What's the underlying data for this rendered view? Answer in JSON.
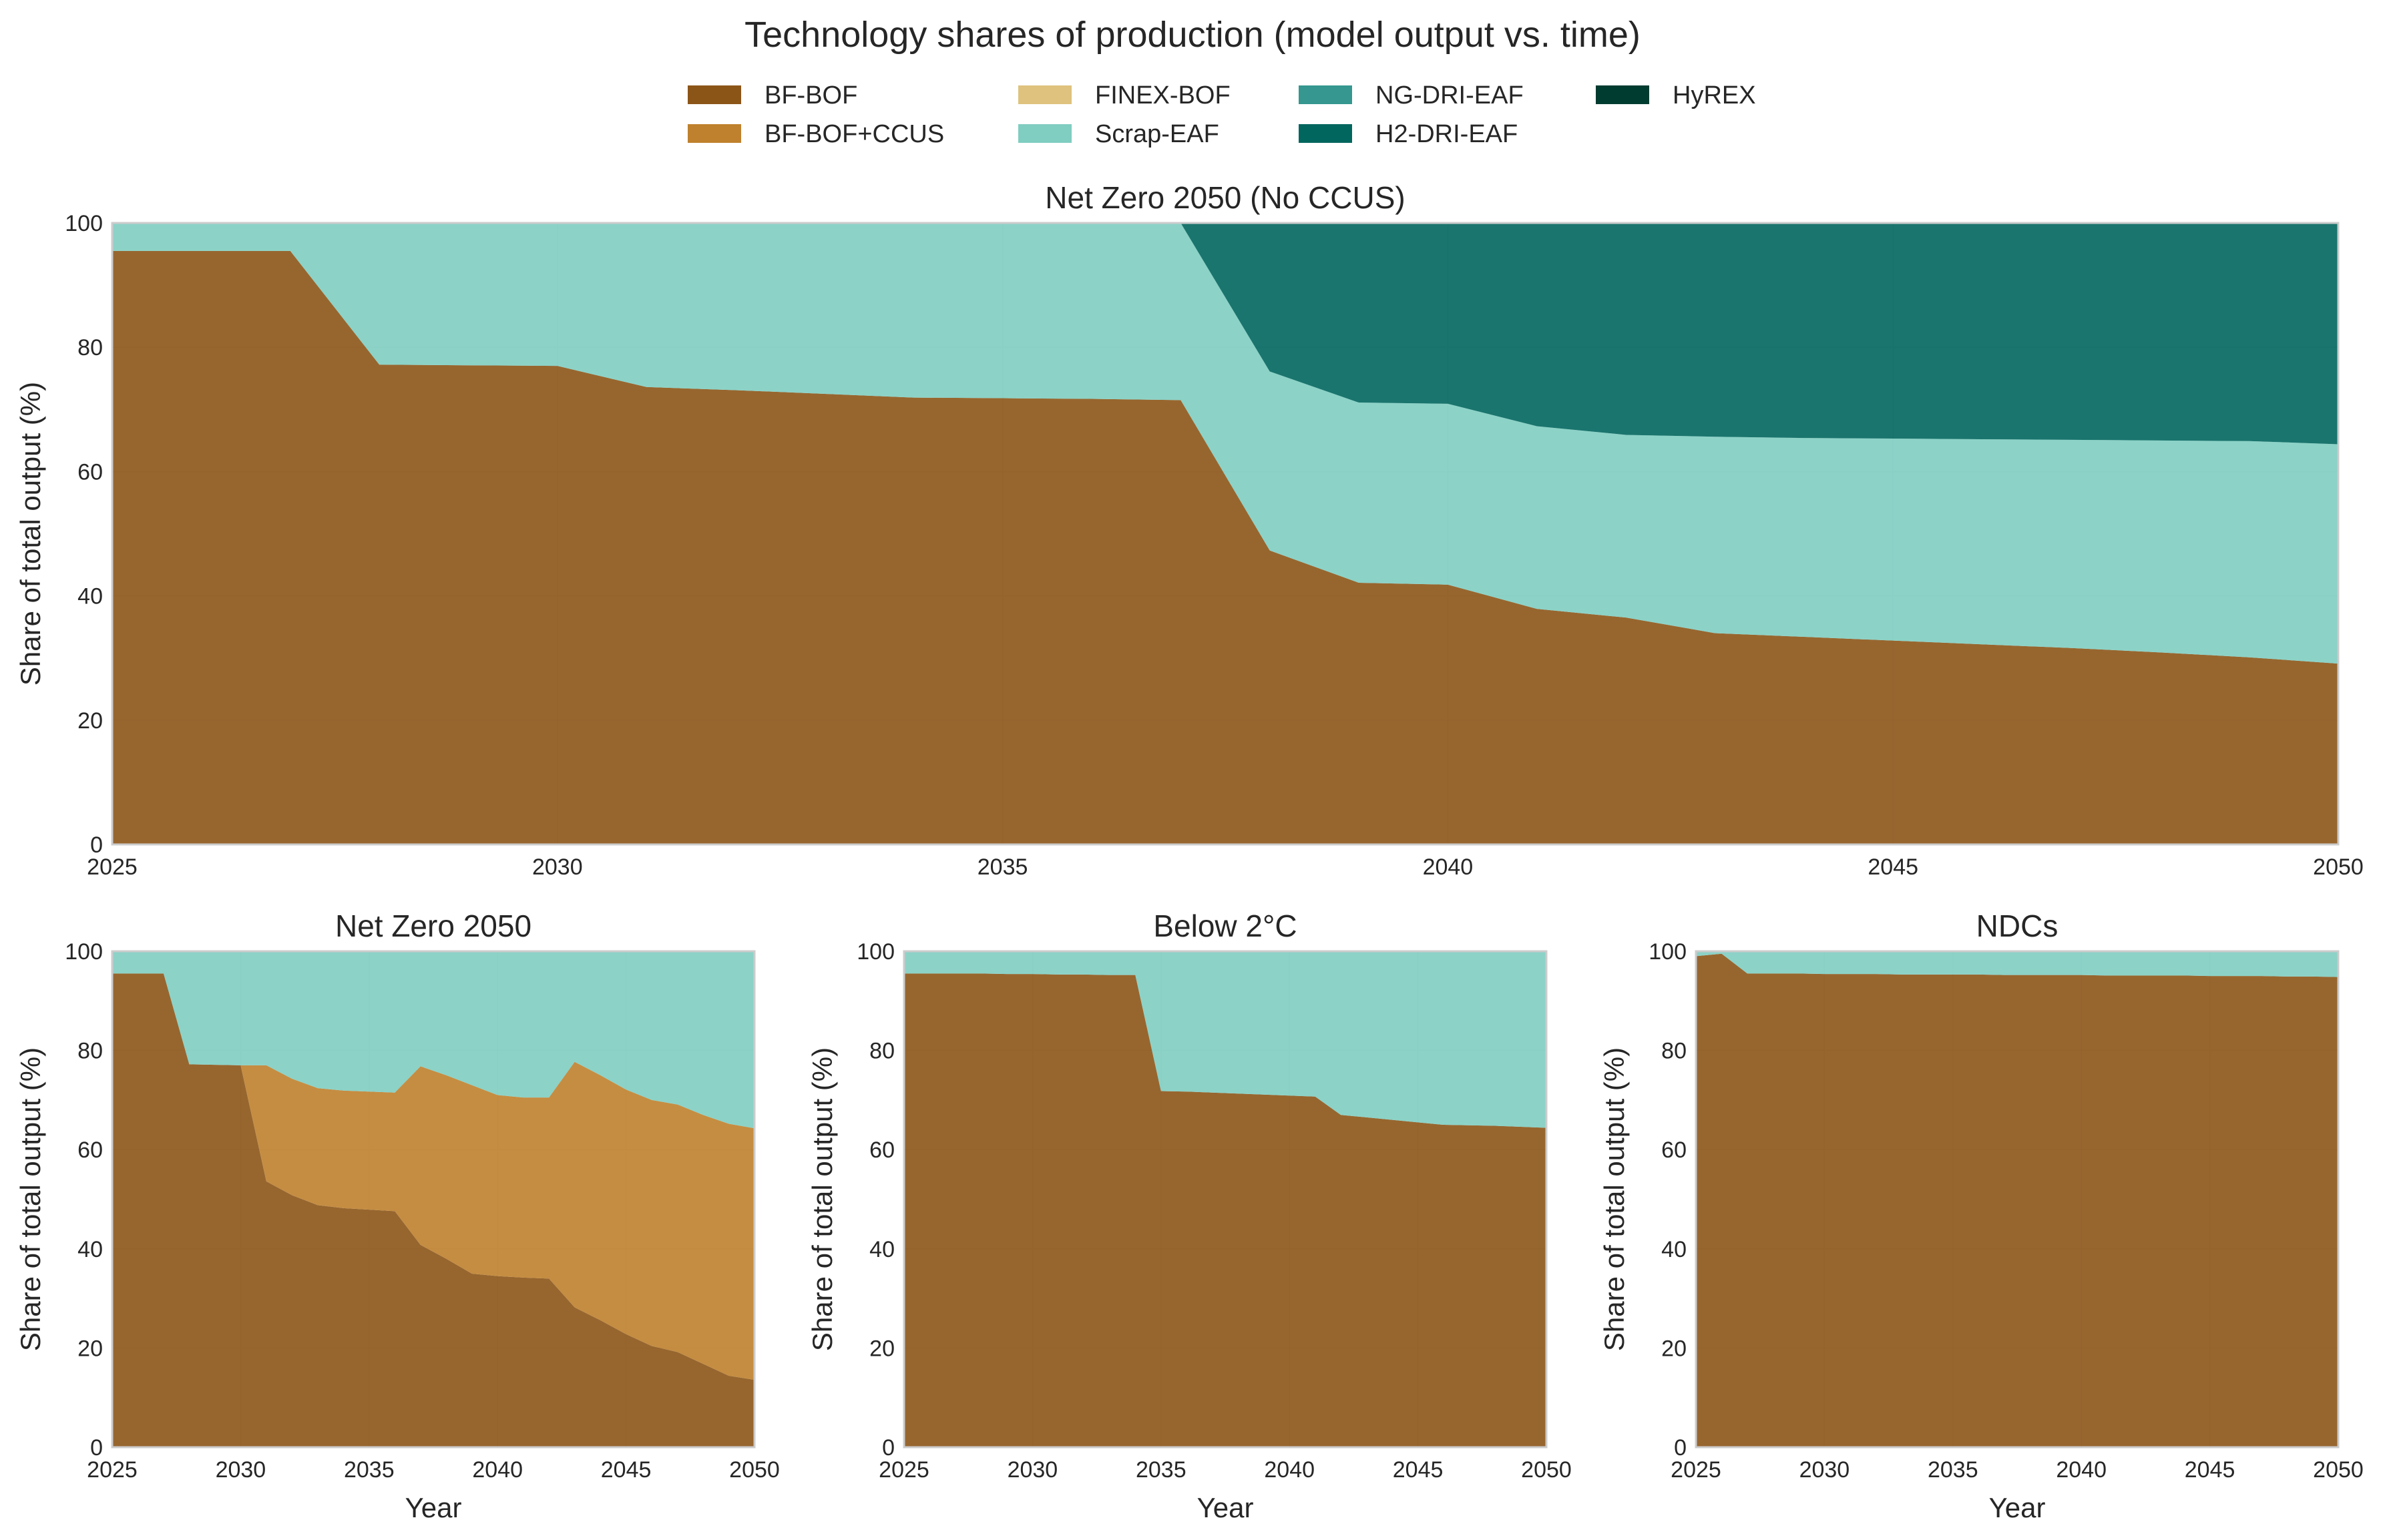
{
  "figure": {
    "title": "Technology shares of production (model output vs. time)"
  },
  "legend": {
    "entries": [
      {
        "name": "BF-BOF",
        "color": "#8c5518"
      },
      {
        "name": "BF-BOF+CCUS",
        "color": "#bf812d"
      },
      {
        "name": "FINEX-BOF",
        "color": "#dfc27d"
      },
      {
        "name": "Scrap-EAF",
        "color": "#80cdc1"
      },
      {
        "name": "NG-DRI-EAF",
        "color": "#35978f"
      },
      {
        "name": "H2-DRI-EAF",
        "color": "#01665e"
      },
      {
        "name": "HyREX",
        "color": "#003c30"
      }
    ]
  },
  "chart_data": [
    {
      "type": "area",
      "title": "Net Zero 2050 (No CCUS)",
      "xlabel": "",
      "ylabel": "Share of total output (%)",
      "xlim": [
        2025,
        2050
      ],
      "ylim": [
        0,
        100
      ],
      "xticks": [
        2025,
        2030,
        2035,
        2040,
        2045,
        2050
      ],
      "yticks": [
        0,
        20,
        40,
        60,
        80,
        100
      ],
      "grid": true,
      "stacked": true,
      "x": [
        2025,
        2026,
        2027,
        2028,
        2029,
        2030,
        2031,
        2032,
        2033,
        2034,
        2035,
        2036,
        2037,
        2038,
        2039,
        2040,
        2041,
        2042,
        2043,
        2044,
        2045,
        2046,
        2047,
        2048,
        2049,
        2050
      ],
      "series": [
        {
          "name": "BF-BOF",
          "values": [
            95.5,
            95.5,
            95.5,
            77.2,
            77.1,
            77.0,
            73.6,
            73.1,
            72.5,
            71.9,
            71.8,
            71.7,
            71.5,
            47.3,
            42.1,
            41.8,
            37.9,
            36.5,
            34.0,
            33.4,
            32.8,
            32.2,
            31.6,
            30.9,
            30.1,
            29.1
          ]
        },
        {
          "name": "BF-BOF+CCUS",
          "values": [
            0,
            0,
            0,
            0,
            0,
            0,
            0,
            0,
            0,
            0,
            0,
            0,
            0,
            0,
            0,
            0,
            0,
            0,
            0,
            0,
            0,
            0,
            0,
            0,
            0,
            0
          ]
        },
        {
          "name": "FINEX-BOF",
          "values": [
            0,
            0,
            0,
            0,
            0,
            0,
            0,
            0,
            0,
            0,
            0,
            0,
            0,
            0,
            0,
            0,
            0,
            0,
            0,
            0,
            0,
            0,
            0,
            0,
            0,
            0
          ]
        },
        {
          "name": "Scrap-EAF",
          "values": [
            4.5,
            4.5,
            4.5,
            22.8,
            22.9,
            23.0,
            26.4,
            26.9,
            27.5,
            28.1,
            28.2,
            28.3,
            28.5,
            28.8,
            29.0,
            29.1,
            29.4,
            29.4,
            31.6,
            32.0,
            32.5,
            33.0,
            33.5,
            34.1,
            34.8,
            35.3
          ]
        },
        {
          "name": "NG-DRI-EAF",
          "values": [
            0,
            0,
            0,
            0,
            0,
            0,
            0,
            0,
            0,
            0,
            0,
            0,
            0,
            0,
            0,
            0,
            0,
            0,
            0,
            0,
            0,
            0,
            0,
            0,
            0,
            0
          ]
        },
        {
          "name": "H2-DRI-EAF",
          "values": [
            0,
            0,
            0,
            0,
            0,
            0,
            0,
            0,
            0,
            0,
            0,
            0,
            0,
            23.9,
            28.9,
            29.1,
            32.7,
            34.1,
            34.4,
            34.6,
            34.7,
            34.8,
            34.9,
            35.0,
            35.1,
            35.6
          ]
        },
        {
          "name": "HyREX",
          "values": [
            0,
            0,
            0,
            0,
            0,
            0,
            0,
            0,
            0,
            0,
            0,
            0,
            0,
            0,
            0,
            0,
            0,
            0,
            0,
            0,
            0,
            0,
            0,
            0,
            0,
            0
          ]
        }
      ]
    },
    {
      "type": "area",
      "title": "Net Zero 2050",
      "xlabel": "Year",
      "ylabel": "Share of total output (%)",
      "xlim": [
        2025,
        2050
      ],
      "ylim": [
        0,
        100
      ],
      "xticks": [
        2025,
        2030,
        2035,
        2040,
        2045,
        2050
      ],
      "yticks": [
        0,
        20,
        40,
        60,
        80,
        100
      ],
      "grid": true,
      "stacked": true,
      "x": [
        2025,
        2026,
        2027,
        2028,
        2029,
        2030,
        2031,
        2032,
        2033,
        2034,
        2035,
        2036,
        2037,
        2038,
        2039,
        2040,
        2041,
        2042,
        2043,
        2044,
        2045,
        2046,
        2047,
        2048,
        2049,
        2050
      ],
      "series": [
        {
          "name": "BF-BOF",
          "values": [
            95.5,
            95.5,
            95.5,
            77.2,
            77.1,
            77.0,
            53.6,
            50.8,
            48.8,
            48.2,
            47.9,
            47.6,
            40.8,
            38.0,
            35.0,
            34.5,
            34.2,
            34.0,
            28.2,
            25.6,
            22.8,
            20.4,
            19.2,
            16.8,
            14.4,
            13.6
          ]
        },
        {
          "name": "BF-BOF+CCUS",
          "values": [
            0,
            0,
            0,
            0,
            0,
            0,
            23.4,
            23.5,
            23.6,
            23.7,
            23.8,
            23.9,
            36.0,
            37.0,
            38.0,
            36.5,
            36.3,
            36.5,
            49.5,
            49.4,
            49.3,
            49.6,
            49.9,
            50.2,
            50.8,
            50.7
          ]
        },
        {
          "name": "FINEX-BOF",
          "values": [
            0,
            0,
            0,
            0,
            0,
            0,
            0,
            0,
            0,
            0,
            0,
            0,
            0,
            0,
            0,
            0,
            0,
            0,
            0,
            0,
            0,
            0,
            0,
            0,
            0,
            0
          ]
        },
        {
          "name": "Scrap-EAF",
          "values": [
            4.5,
            4.5,
            4.5,
            22.8,
            22.9,
            23.0,
            23.0,
            25.7,
            27.6,
            28.1,
            28.3,
            28.5,
            23.2,
            25.0,
            27.0,
            29.0,
            29.5,
            29.5,
            22.3,
            25.0,
            27.9,
            30.0,
            30.9,
            33.0,
            34.8,
            35.7
          ]
        },
        {
          "name": "NG-DRI-EAF",
          "values": [
            0,
            0,
            0,
            0,
            0,
            0,
            0,
            0,
            0,
            0,
            0,
            0,
            0,
            0,
            0,
            0,
            0,
            0,
            0,
            0,
            0,
            0,
            0,
            0,
            0,
            0
          ]
        },
        {
          "name": "H2-DRI-EAF",
          "values": [
            0,
            0,
            0,
            0,
            0,
            0,
            0,
            0,
            0,
            0,
            0,
            0,
            0,
            0,
            0,
            0,
            0,
            0,
            0,
            0,
            0,
            0,
            0,
            0,
            0,
            0
          ]
        },
        {
          "name": "HyREX",
          "values": [
            0,
            0,
            0,
            0,
            0,
            0,
            0,
            0,
            0,
            0,
            0,
            0,
            0,
            0,
            0,
            0,
            0,
            0,
            0,
            0,
            0,
            0,
            0,
            0,
            0,
            0
          ]
        }
      ]
    },
    {
      "type": "area",
      "title": "Below 2°C",
      "xlabel": "Year",
      "ylabel": "Share of total output (%)",
      "xlim": [
        2025,
        2050
      ],
      "ylim": [
        0,
        100
      ],
      "xticks": [
        2025,
        2030,
        2035,
        2040,
        2045,
        2050
      ],
      "yticks": [
        0,
        20,
        40,
        60,
        80,
        100
      ],
      "grid": true,
      "stacked": true,
      "x": [
        2025,
        2026,
        2027,
        2028,
        2029,
        2030,
        2031,
        2032,
        2033,
        2034,
        2035,
        2036,
        2037,
        2038,
        2039,
        2040,
        2041,
        2042,
        2043,
        2044,
        2045,
        2046,
        2047,
        2048,
        2049,
        2050
      ],
      "series": [
        {
          "name": "BF-BOF",
          "values": [
            95.5,
            95.5,
            95.5,
            95.5,
            95.4,
            95.4,
            95.3,
            95.3,
            95.2,
            95.2,
            71.8,
            71.7,
            71.5,
            71.3,
            71.1,
            70.9,
            70.7,
            67.0,
            66.5,
            66.0,
            65.5,
            65.0,
            64.9,
            64.8,
            64.6,
            64.4
          ]
        },
        {
          "name": "BF-BOF+CCUS",
          "values": [
            0,
            0,
            0,
            0,
            0,
            0,
            0,
            0,
            0,
            0,
            0,
            0,
            0,
            0,
            0,
            0,
            0,
            0,
            0,
            0,
            0,
            0,
            0,
            0,
            0,
            0
          ]
        },
        {
          "name": "FINEX-BOF",
          "values": [
            0,
            0,
            0,
            0,
            0,
            0,
            0,
            0,
            0,
            0,
            0,
            0,
            0,
            0,
            0,
            0,
            0,
            0,
            0,
            0,
            0,
            0,
            0,
            0,
            0,
            0
          ]
        },
        {
          "name": "Scrap-EAF",
          "values": [
            4.5,
            4.5,
            4.5,
            4.5,
            4.6,
            4.6,
            4.7,
            4.7,
            4.8,
            4.8,
            28.2,
            28.3,
            28.5,
            28.7,
            28.9,
            29.1,
            29.3,
            33.0,
            33.5,
            34.0,
            34.5,
            35.0,
            35.1,
            35.2,
            35.4,
            35.6
          ]
        },
        {
          "name": "NG-DRI-EAF",
          "values": [
            0,
            0,
            0,
            0,
            0,
            0,
            0,
            0,
            0,
            0,
            0,
            0,
            0,
            0,
            0,
            0,
            0,
            0,
            0,
            0,
            0,
            0,
            0,
            0,
            0,
            0
          ]
        },
        {
          "name": "H2-DRI-EAF",
          "values": [
            0,
            0,
            0,
            0,
            0,
            0,
            0,
            0,
            0,
            0,
            0,
            0,
            0,
            0,
            0,
            0,
            0,
            0,
            0,
            0,
            0,
            0,
            0,
            0,
            0,
            0
          ]
        },
        {
          "name": "HyREX",
          "values": [
            0,
            0,
            0,
            0,
            0,
            0,
            0,
            0,
            0,
            0,
            0,
            0,
            0,
            0,
            0,
            0,
            0,
            0,
            0,
            0,
            0,
            0,
            0,
            0,
            0,
            0
          ]
        }
      ]
    },
    {
      "type": "area",
      "title": "NDCs",
      "xlabel": "Year",
      "ylabel": "Share of total output (%)",
      "xlim": [
        2025,
        2050
      ],
      "ylim": [
        0,
        100
      ],
      "xticks": [
        2025,
        2030,
        2035,
        2040,
        2045,
        2050
      ],
      "yticks": [
        0,
        20,
        40,
        60,
        80,
        100
      ],
      "grid": true,
      "stacked": true,
      "x": [
        2025,
        2026,
        2027,
        2028,
        2029,
        2030,
        2031,
        2032,
        2033,
        2034,
        2035,
        2036,
        2037,
        2038,
        2039,
        2040,
        2041,
        2042,
        2043,
        2044,
        2045,
        2046,
        2047,
        2048,
        2049,
        2050
      ],
      "series": [
        {
          "name": "BF-BOF",
          "values": [
            99.0,
            99.5,
            95.5,
            95.5,
            95.5,
            95.4,
            95.4,
            95.4,
            95.3,
            95.3,
            95.3,
            95.3,
            95.2,
            95.2,
            95.2,
            95.2,
            95.1,
            95.1,
            95.1,
            95.1,
            95.0,
            95.0,
            95.0,
            94.9,
            94.9,
            94.8
          ]
        },
        {
          "name": "BF-BOF+CCUS",
          "values": [
            0,
            0,
            0,
            0,
            0,
            0,
            0,
            0,
            0,
            0,
            0,
            0,
            0,
            0,
            0,
            0,
            0,
            0,
            0,
            0,
            0,
            0,
            0,
            0,
            0,
            0
          ]
        },
        {
          "name": "FINEX-BOF",
          "values": [
            0,
            0,
            0,
            0,
            0,
            0,
            0,
            0,
            0,
            0,
            0,
            0,
            0,
            0,
            0,
            0,
            0,
            0,
            0,
            0,
            0,
            0,
            0,
            0,
            0,
            0
          ]
        },
        {
          "name": "Scrap-EAF",
          "values": [
            1.0,
            0.5,
            4.5,
            4.5,
            4.5,
            4.6,
            4.6,
            4.6,
            4.7,
            4.7,
            4.7,
            4.7,
            4.8,
            4.8,
            4.8,
            4.8,
            4.9,
            4.9,
            4.9,
            4.9,
            5.0,
            5.0,
            5.0,
            5.1,
            5.1,
            5.2
          ]
        },
        {
          "name": "NG-DRI-EAF",
          "values": [
            0,
            0,
            0,
            0,
            0,
            0,
            0,
            0,
            0,
            0,
            0,
            0,
            0,
            0,
            0,
            0,
            0,
            0,
            0,
            0,
            0,
            0,
            0,
            0,
            0,
            0
          ]
        },
        {
          "name": "H2-DRI-EAF",
          "values": [
            0,
            0,
            0,
            0,
            0,
            0,
            0,
            0,
            0,
            0,
            0,
            0,
            0,
            0,
            0,
            0,
            0,
            0,
            0,
            0,
            0,
            0,
            0,
            0,
            0,
            0
          ]
        },
        {
          "name": "HyREX",
          "values": [
            0,
            0,
            0,
            0,
            0,
            0,
            0,
            0,
            0,
            0,
            0,
            0,
            0,
            0,
            0,
            0,
            0,
            0,
            0,
            0,
            0,
            0,
            0,
            0,
            0,
            0
          ]
        }
      ]
    }
  ]
}
